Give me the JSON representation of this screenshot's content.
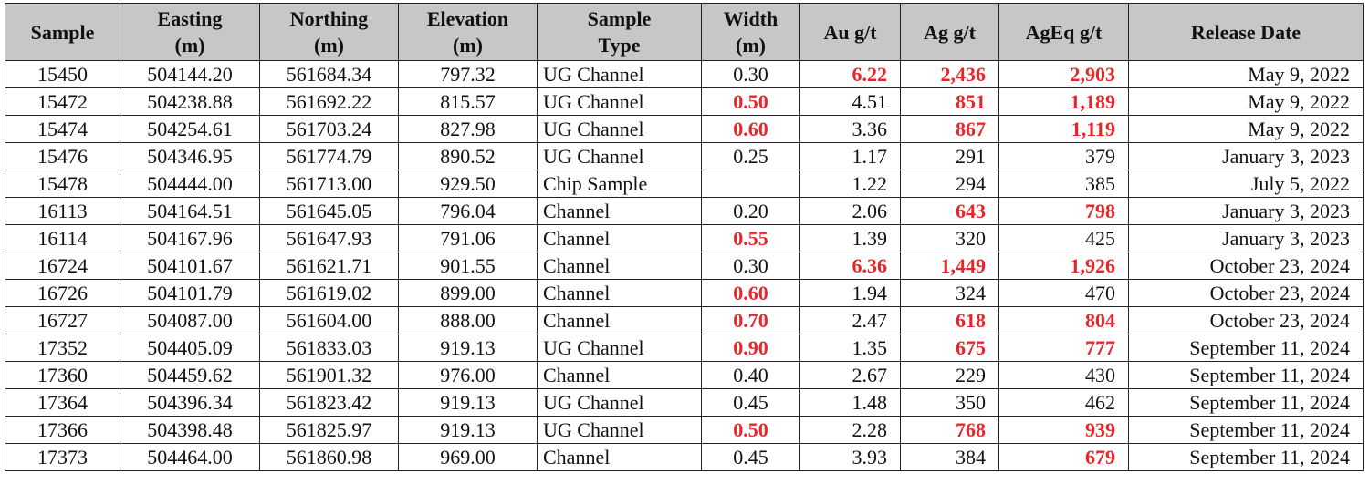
{
  "table": {
    "header": [
      "Sample",
      "Easting\n(m)",
      "Northing\n(m)",
      "Elevation\n(m)",
      "Sample\nType",
      "Width\n(m)",
      "Au g/t",
      "Ag g/t",
      "AgEq g/t",
      "Release Date"
    ],
    "rows": [
      [
        "15450",
        "504144.20",
        "561684.34",
        "797.32",
        "UG Channel",
        "0.30",
        "6.22",
        "2,436",
        "2,903",
        "May 9, 2022"
      ],
      [
        "15472",
        "504238.88",
        "561692.22",
        "815.57",
        "UG Channel",
        "0.50",
        "4.51",
        "851",
        "1,189",
        "May 9, 2022"
      ],
      [
        "15474",
        "504254.61",
        "561703.24",
        "827.98",
        "UG Channel",
        "0.60",
        "3.36",
        "867",
        "1,119",
        "May 9, 2022"
      ],
      [
        "15476",
        "504346.95",
        "561774.79",
        "890.52",
        "UG Channel",
        "0.25",
        "1.17",
        "291",
        "379",
        "January 3, 2023"
      ],
      [
        "15478",
        "504444.00",
        "561713.00",
        "929.50",
        "Chip Sample",
        null,
        "1.22",
        "294",
        "385",
        "July 5, 2022"
      ],
      [
        "16113",
        "504164.51",
        "561645.05",
        "796.04",
        "Channel",
        "0.20",
        "2.06",
        "643",
        "798",
        "January 3, 2023"
      ],
      [
        "16114",
        "504167.96",
        "561647.93",
        "791.06",
        "Channel",
        "0.55",
        "1.39",
        "320",
        "425",
        "January 3, 2023"
      ],
      [
        "16724",
        "504101.67",
        "561621.71",
        "901.55",
        "Channel",
        "0.30",
        "6.36",
        "1,449",
        "1,926",
        "October 23, 2024"
      ],
      [
        "16726",
        "504101.79",
        "561619.02",
        "899.00",
        "Channel",
        "0.60",
        "1.94",
        "324",
        "470",
        "October 23, 2024"
      ],
      [
        "16727",
        "504087.00",
        "561604.00",
        "888.00",
        "Channel",
        "0.70",
        "2.47",
        "618",
        "804",
        "October 23, 2024"
      ],
      [
        "17352",
        "504405.09",
        "561833.03",
        "919.13",
        "UG Channel",
        "0.90",
        "1.35",
        "675",
        "777",
        "September 11, 2024"
      ],
      [
        "17360",
        "504459.62",
        "561901.32",
        "976.00",
        "Channel",
        "0.40",
        "2.67",
        "229",
        "430",
        "September 11, 2024"
      ],
      [
        "17364",
        "504396.34",
        "561823.42",
        "919.13",
        "UG Channel",
        "0.45",
        "1.48",
        "350",
        "462",
        "September 11, 2024"
      ],
      [
        "17366",
        "504398.48",
        "561825.97",
        "919.13",
        "UG Channel",
        "0.50",
        "2.28",
        "768",
        "939",
        "September 11, 2024"
      ],
      [
        "17373",
        "504464.00",
        "561860.98",
        "969.00",
        "Channel",
        "0.45",
        "3.93",
        "384",
        "679",
        "September 11, 2024"
      ]
    ]
  }
}
